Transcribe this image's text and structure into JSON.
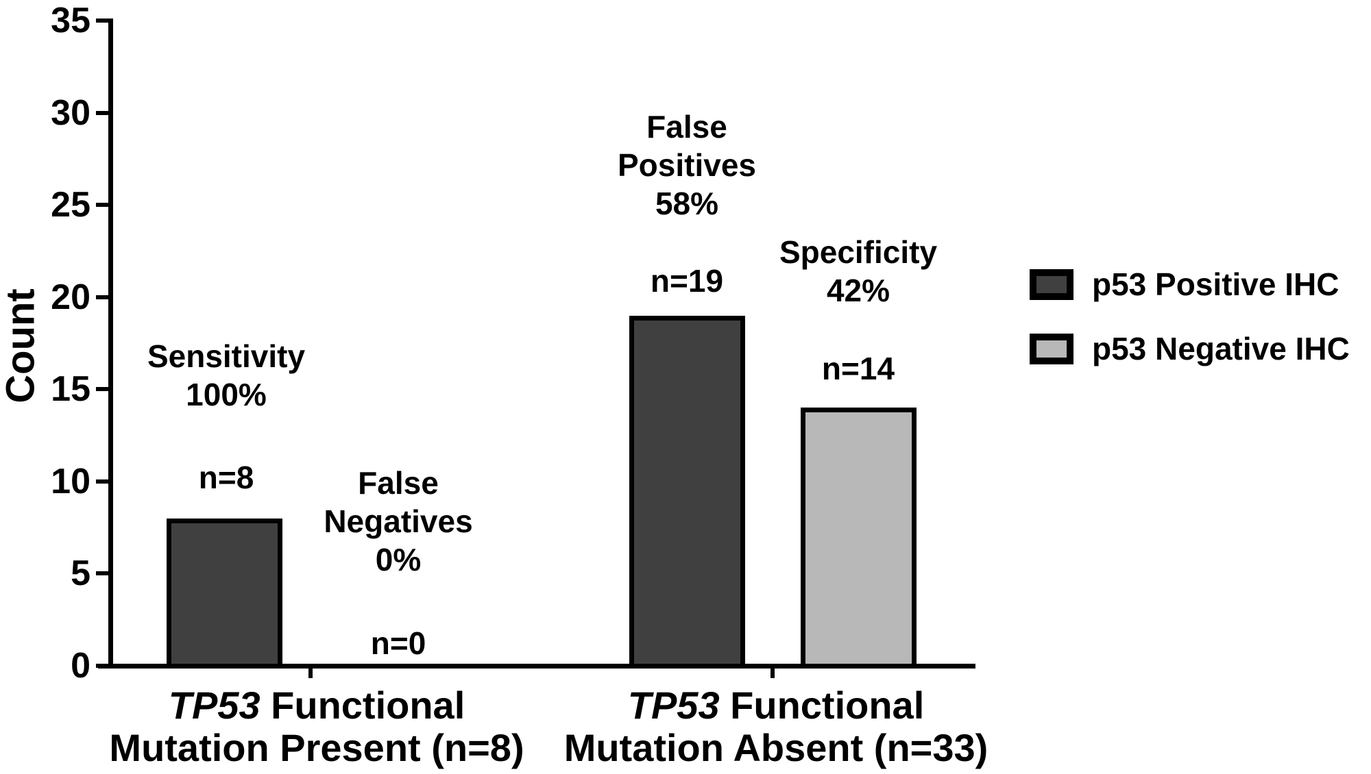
{
  "chart_data": {
    "type": "bar",
    "title": "",
    "xlabel": "",
    "ylabel": "Count",
    "ylim": [
      0,
      35
    ],
    "yticks": [
      0,
      5,
      10,
      15,
      20,
      25,
      30,
      35
    ],
    "grid": false,
    "legend_position": "right",
    "categories": [
      "TP53 Functional Mutation Present (n=8)",
      "TP53 Functional Mutation Absent (n=33)"
    ],
    "series": [
      {
        "name": "p53 Positive IHC",
        "values": [
          8,
          19
        ]
      },
      {
        "name": "p53 Negative IHC",
        "values": [
          0,
          14
        ]
      }
    ],
    "bars": [
      {
        "group": 0,
        "series": "p53 Positive IHC",
        "value": 8,
        "fill": "dark"
      },
      {
        "group": 1,
        "series": "p53 Positive IHC",
        "value": 19,
        "fill": "dark"
      },
      {
        "group": 1,
        "series": "p53 Negative IHC",
        "value": 14,
        "fill": "light"
      }
    ]
  },
  "yaxis": {
    "label": "Count"
  },
  "xaxis": {
    "groups": [
      {
        "line1_italic": "TP53",
        "line1_rest": " Functional",
        "line2": "Mutation Present (n=8)"
      },
      {
        "line1_italic": "TP53",
        "line1_rest": " Functional",
        "line2": "Mutation Absent (n=33)"
      }
    ]
  },
  "annotations": {
    "sensitivity": "Sensitivity\n100%",
    "n_sensitivity": "n=8",
    "false_negatives": "False\nNegatives\n0%",
    "n_false_negatives": "n=0",
    "false_positives": "False\nPositives\n58%",
    "n_false_positives": "n=19",
    "specificity": "Specificity\n42%",
    "n_specificity": "n=14"
  },
  "legend": {
    "items": [
      {
        "label": "p53 Positive IHC",
        "color": "#404040"
      },
      {
        "label": "p53 Negative IHC",
        "color": "#b8b8b8"
      }
    ]
  },
  "colors": {
    "dark": "#404040",
    "light": "#b8b8b8",
    "axis": "#000000",
    "background": "#ffffff"
  }
}
